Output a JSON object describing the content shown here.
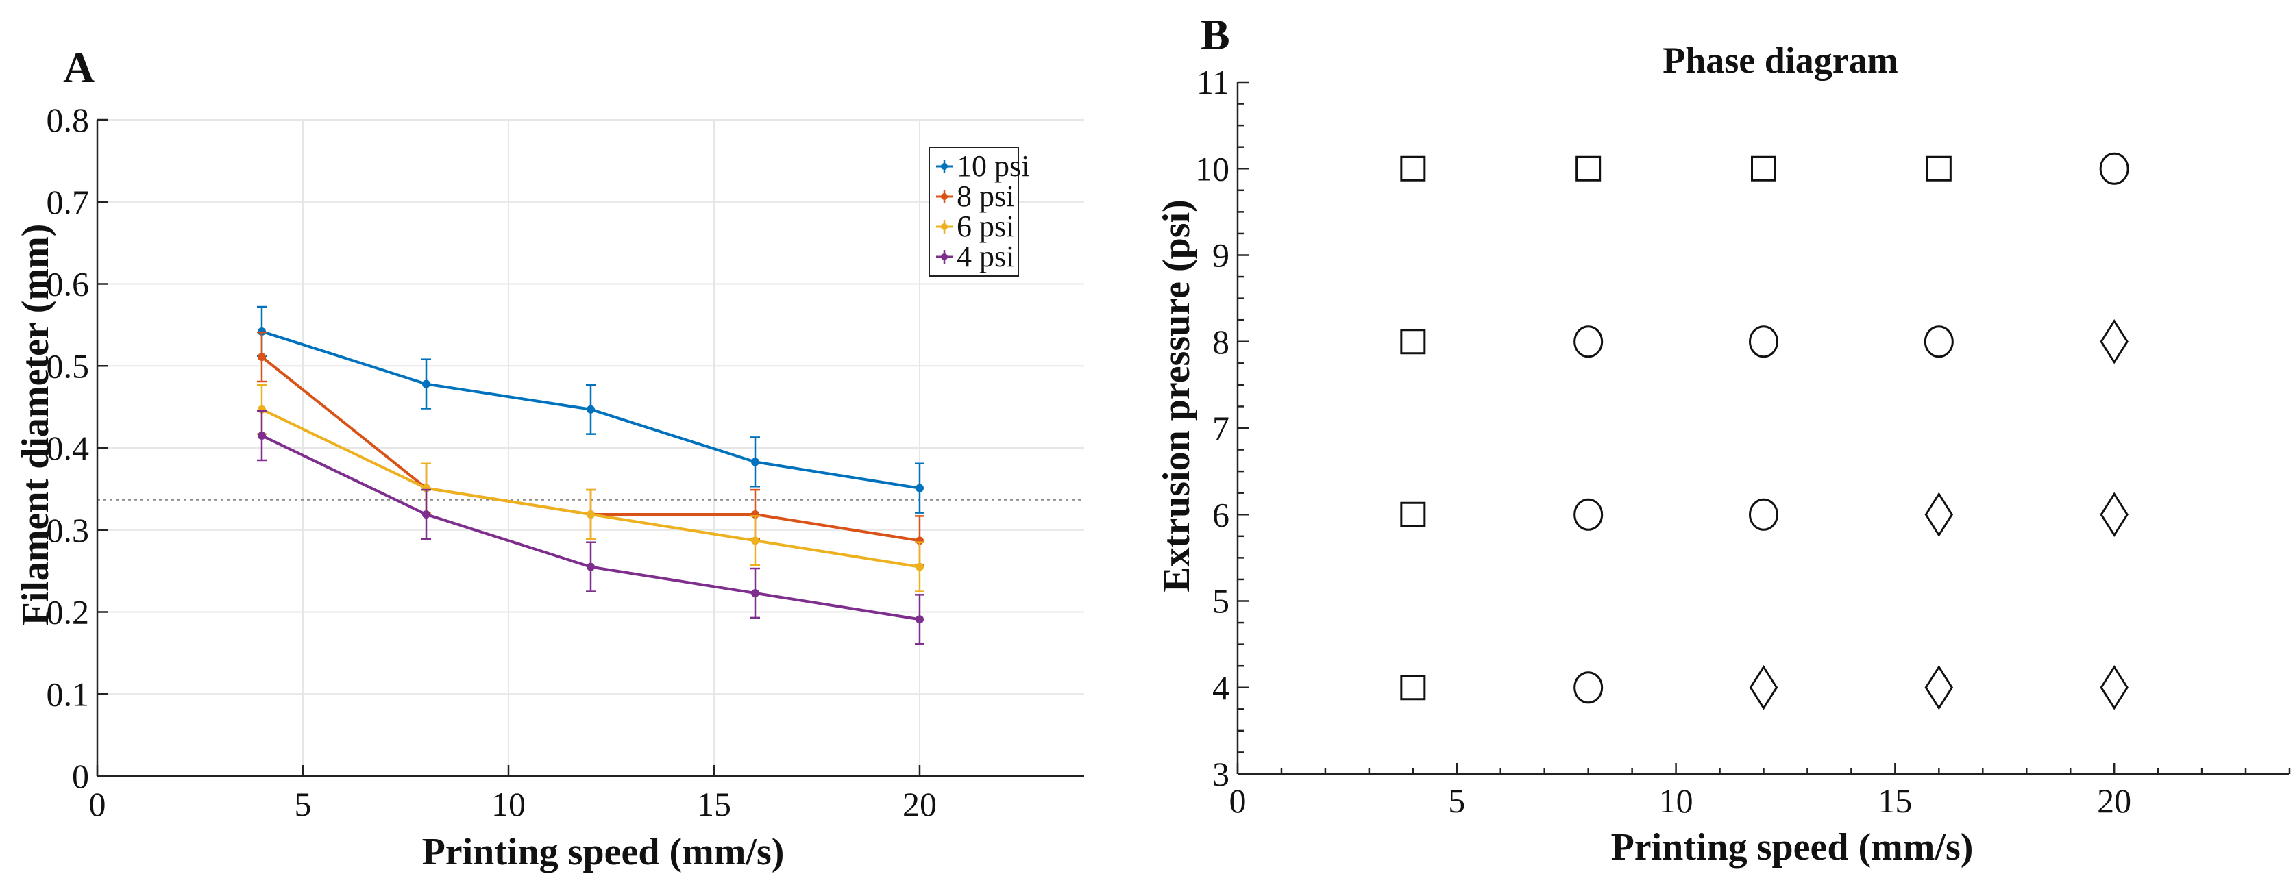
{
  "chart_data": [
    {
      "type": "line",
      "panel_label": "A",
      "title": "",
      "xlabel": "Printing speed (mm/s)",
      "ylabel": "Filament diameter (mm)",
      "xlim": [
        0,
        24
      ],
      "ylim": [
        0,
        0.8
      ],
      "xticks": [
        0,
        5,
        10,
        15,
        20
      ],
      "yticks": [
        0,
        0.1,
        0.2,
        0.3,
        0.4,
        0.5,
        0.6,
        0.7,
        0.8
      ],
      "ytick_labels": [
        "0",
        "0.1",
        "0.2",
        "0.3",
        "0.4",
        "0.5",
        "0.6",
        "0.7",
        "0.8"
      ],
      "grid": true,
      "legend_position": "top-right",
      "x": [
        4,
        8,
        12,
        16,
        20
      ],
      "reference_line": {
        "y": 0.337,
        "style": "dotted"
      },
      "series": [
        {
          "name": "10 psi",
          "color": "#0072bd",
          "values": [
            0.542,
            0.478,
            0.447,
            0.383,
            0.351
          ],
          "errors": [
            0.03,
            0.03,
            0.03,
            0.03,
            0.03
          ]
        },
        {
          "name": "8 psi",
          "color": "#d95319",
          "values": [
            0.511,
            0.351,
            0.319,
            0.319,
            0.287
          ],
          "errors": [
            0.03,
            0.03,
            0.03,
            0.03,
            0.03
          ]
        },
        {
          "name": "6 psi",
          "color": "#edb120",
          "values": [
            0.447,
            0.351,
            0.319,
            0.287,
            0.255
          ],
          "errors": [
            0.03,
            0.03,
            0.03,
            0.03,
            0.03
          ]
        },
        {
          "name": "4 psi",
          "color": "#7e2f8e",
          "values": [
            0.415,
            0.319,
            0.255,
            0.223,
            0.191
          ],
          "errors": [
            0.03,
            0.03,
            0.03,
            0.03,
            0.03
          ]
        }
      ]
    },
    {
      "type": "scatter",
      "panel_label": "B",
      "title": "Phase diagram",
      "xlabel": "Printing speed (mm/s)",
      "ylabel": "Extrusion pressure (psi)",
      "xlim": [
        0,
        24
      ],
      "ylim": [
        3,
        11
      ],
      "xticks": [
        0,
        5,
        10,
        15,
        20
      ],
      "yticks": [
        3,
        4,
        5,
        6,
        7,
        8,
        9,
        10,
        11
      ],
      "grid": false,
      "points": [
        {
          "x": 4,
          "y": 10,
          "marker": "square"
        },
        {
          "x": 8,
          "y": 10,
          "marker": "square"
        },
        {
          "x": 12,
          "y": 10,
          "marker": "square"
        },
        {
          "x": 16,
          "y": 10,
          "marker": "square"
        },
        {
          "x": 20,
          "y": 10,
          "marker": "circle"
        },
        {
          "x": 4,
          "y": 8,
          "marker": "square"
        },
        {
          "x": 8,
          "y": 8,
          "marker": "circle"
        },
        {
          "x": 12,
          "y": 8,
          "marker": "circle"
        },
        {
          "x": 16,
          "y": 8,
          "marker": "circle"
        },
        {
          "x": 20,
          "y": 8,
          "marker": "diamond"
        },
        {
          "x": 4,
          "y": 6,
          "marker": "square"
        },
        {
          "x": 8,
          "y": 6,
          "marker": "circle"
        },
        {
          "x": 12,
          "y": 6,
          "marker": "circle"
        },
        {
          "x": 16,
          "y": 6,
          "marker": "diamond"
        },
        {
          "x": 20,
          "y": 6,
          "marker": "diamond"
        },
        {
          "x": 4,
          "y": 4,
          "marker": "square"
        },
        {
          "x": 8,
          "y": 4,
          "marker": "circle"
        },
        {
          "x": 12,
          "y": 4,
          "marker": "diamond"
        },
        {
          "x": 16,
          "y": 4,
          "marker": "diamond"
        },
        {
          "x": 20,
          "y": 4,
          "marker": "diamond"
        }
      ]
    }
  ]
}
